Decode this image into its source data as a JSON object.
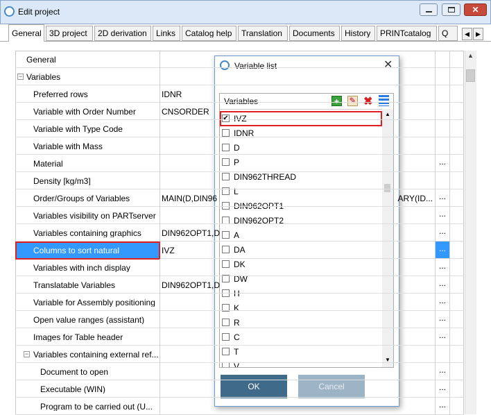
{
  "window": {
    "title": "Edit project"
  },
  "tabs": {
    "items": [
      "General",
      "3D project",
      "2D derivation",
      "Links",
      "Catalog help",
      "Translation",
      "Documents",
      "History",
      "PRINTcatalog",
      "Q"
    ],
    "selected": 0
  },
  "grid": {
    "rows": [
      {
        "label": "General",
        "expanded": false
      },
      {
        "label": "Variables",
        "expanded": true,
        "children": [
          {
            "label": "Preferred rows",
            "value": "IDNR"
          },
          {
            "label": "Variable with Order Number",
            "value": "CNSORDER"
          },
          {
            "label": "Variable with Type Code"
          },
          {
            "label": "Variable with Mass"
          },
          {
            "label": "Material",
            "button": "..."
          },
          {
            "label": "Density [kg/m3]"
          },
          {
            "label": "Order/Groups of Variables",
            "value": "MAIN(D,DIN96",
            "value_end": "ARY(ID...",
            "button": "..."
          },
          {
            "label": "Variables visibility on PARTserver",
            "button": "..."
          },
          {
            "label": "Variables containing graphics",
            "value": "DIN962OPT1,D",
            "button": "..."
          },
          {
            "label": "Columns to sort natural",
            "value": "IVZ",
            "button": "...",
            "selected": true,
            "highlighted": true
          },
          {
            "label": "Variables with inch display",
            "button": "..."
          },
          {
            "label": "Translatable Variables",
            "value": "DIN962OPT1,D",
            "button": "..."
          },
          {
            "label": "Variable for Assembly positioning",
            "button": "..."
          },
          {
            "label": "Open value ranges (assistant)",
            "button": "..."
          },
          {
            "label": "Images for Table header",
            "button": "..."
          },
          {
            "label": "Variables containing external ref...",
            "expanded": true,
            "children": [
              {
                "label": "Document to open",
                "button": "..."
              },
              {
                "label": "Executable (WIN)",
                "button": "..."
              },
              {
                "label": "Program to be carried out (U...",
                "button": "..."
              }
            ]
          }
        ]
      }
    ]
  },
  "dialog": {
    "title": "Variable list",
    "list_header": "Variables",
    "items": [
      {
        "label": "IVZ",
        "checked": true,
        "highlighted": true
      },
      {
        "label": "IDNR",
        "checked": false
      },
      {
        "label": "D",
        "checked": false
      },
      {
        "label": "P",
        "checked": false
      },
      {
        "label": "DIN962THREAD",
        "checked": false
      },
      {
        "label": "L",
        "checked": false
      },
      {
        "label": "DIN962OPT1",
        "checked": false
      },
      {
        "label": "DIN962OPT2",
        "checked": false
      },
      {
        "label": "A",
        "checked": false
      },
      {
        "label": "DA",
        "checked": false
      },
      {
        "label": "DK",
        "checked": false
      },
      {
        "label": "DW",
        "checked": false
      },
      {
        "label": "H",
        "checked": false
      },
      {
        "label": "K",
        "checked": false
      },
      {
        "label": "R",
        "checked": false
      },
      {
        "label": "C",
        "checked": false
      },
      {
        "label": "T",
        "checked": false
      },
      {
        "label": "V",
        "checked": false
      }
    ],
    "ok": "OK",
    "cancel": "Cancel"
  }
}
